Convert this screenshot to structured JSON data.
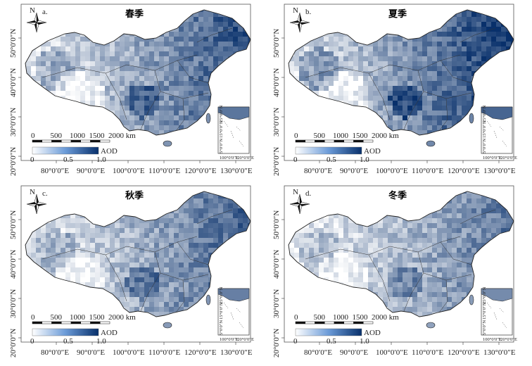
{
  "figure": {
    "panels": [
      {
        "letter": "a.",
        "season": "春季",
        "intensity": 0.58
      },
      {
        "letter": "b.",
        "season": "夏季",
        "intensity": 0.68
      },
      {
        "letter": "c.",
        "season": "秋季",
        "intensity": 0.52
      },
      {
        "letter": "d.",
        "season": "冬季",
        "intensity": 0.45
      }
    ],
    "north_label": "N",
    "scale": {
      "ticks": [
        "0",
        "500",
        "1000",
        "1500",
        "2000 km"
      ]
    },
    "legend": {
      "title": "AOD",
      "ticks": [
        "0",
        "0.5",
        "1.0"
      ],
      "min": 0,
      "max": 1.0,
      "color_low": "#ffffff",
      "color_high": "#08306b"
    },
    "lon_ticks": [
      "80°0′0″E",
      "90°0′0″E",
      "100°0′0″E",
      "110°0′0″E",
      "120°0′0″E",
      "130°0′0″E"
    ],
    "lat_ticks": [
      "50°0′0″N",
      "40°0′0″N",
      "30°0′0″N",
      "20°0′0″N"
    ],
    "inset": {
      "lat_ticks": [
        "25°0′0″N",
        "15°0′0″N",
        "5°0′0″N"
      ],
      "lon_ticks": [
        "100°0′0″E",
        "120°0′0″E"
      ]
    }
  }
}
